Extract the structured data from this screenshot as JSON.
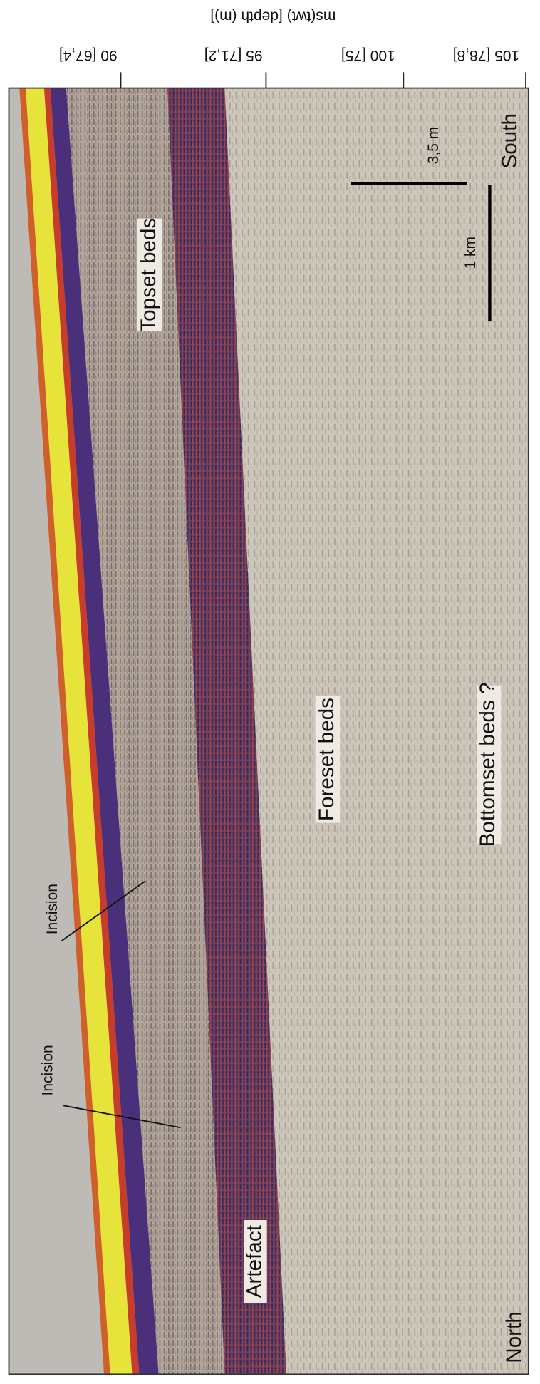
{
  "axis": {
    "title": "ms(twt) [depth (m)]",
    "ticks": [
      "90 [67,4]",
      "95 [71,2]",
      "100 [75]",
      "105 [78,8]"
    ]
  },
  "labels": {
    "topset": "Topset beds",
    "foreset": "Foreset beds",
    "bottomset": "Bottomset beds ?",
    "incision_1": "Incision",
    "incision_2": "Incision",
    "artefact": "Artefact"
  },
  "scale_bars": {
    "vertical": "3,5 m",
    "horizontal": "1 km"
  },
  "directions": {
    "north": "North",
    "south": "South"
  }
}
